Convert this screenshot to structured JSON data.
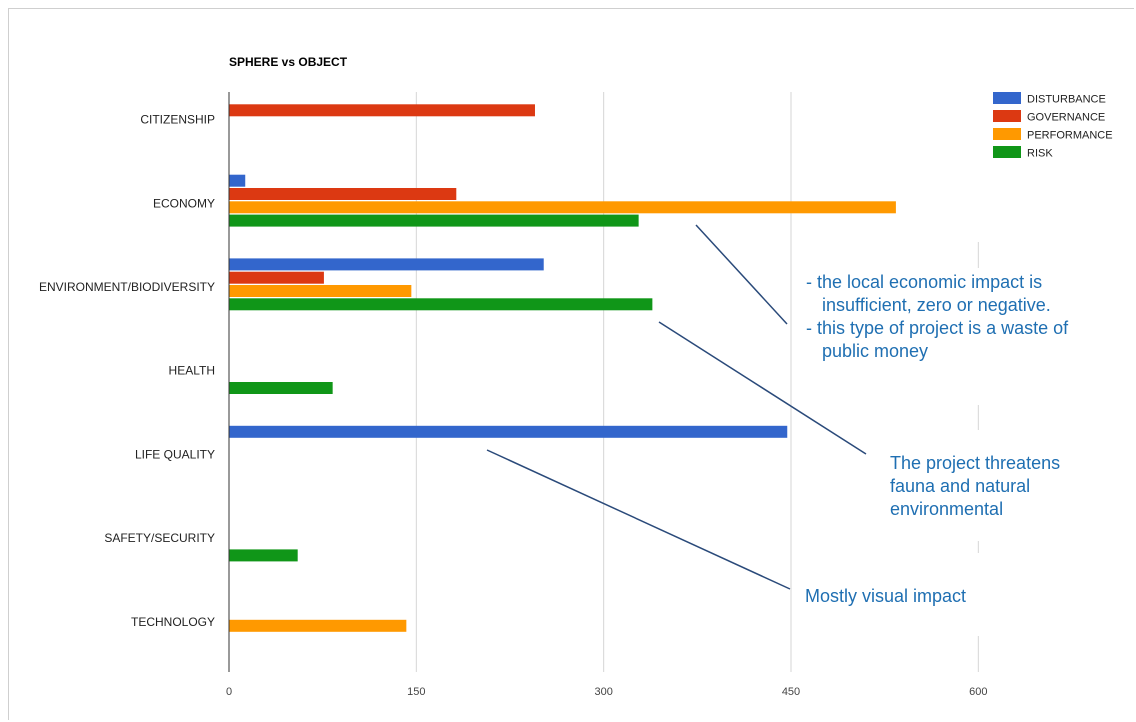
{
  "colors": {
    "DISTURBANCE": "#3366cc",
    "GOVERNANCE": "#dc3912",
    "PERFORMANCE": "#ff9900",
    "RISK": "#109618",
    "annotation_text": "#1f6fb2",
    "annotation_line": "#2a4a7a"
  },
  "chart_data": {
    "type": "bar",
    "orientation": "horizontal",
    "title": "SPHERE vs OBJECT",
    "categories": [
      "CITIZENSHIP",
      "ECONOMY",
      "ENVIRONMENT/BIODIVERSITY",
      "HEALTH",
      "LIFE QUALITY",
      "SAFETY/SECURITY",
      "TECHNOLOGY"
    ],
    "series": [
      {
        "name": "DISTURBANCE",
        "values": [
          0,
          13,
          252,
          0,
          447,
          0,
          0
        ]
      },
      {
        "name": "GOVERNANCE",
        "values": [
          245,
          182,
          76,
          0,
          0,
          0,
          0
        ]
      },
      {
        "name": "PERFORMANCE",
        "values": [
          0,
          534,
          146,
          0,
          0,
          0,
          142
        ]
      },
      {
        "name": "RISK",
        "values": [
          0,
          328,
          339,
          83,
          0,
          55,
          0
        ]
      }
    ],
    "xlim": [
      0,
      720
    ],
    "xticks": [
      "0",
      "150",
      "300",
      "450",
      "600"
    ],
    "grid": true,
    "legend": "top-right"
  },
  "annotations": {
    "economy_note": {
      "lines": [
        "- the local economic impact is",
        "insufficient, zero or negative.",
        "- this type of project is a waste of",
        "public money"
      ]
    },
    "environment_note": {
      "lines": [
        "The project threatens",
        "fauna and natural",
        "environmental"
      ]
    },
    "lifequality_note": {
      "lines": [
        "Mostly visual impact"
      ]
    }
  }
}
